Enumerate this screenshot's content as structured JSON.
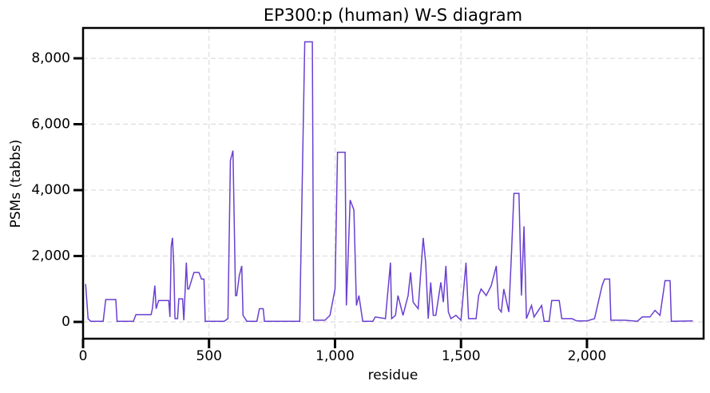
{
  "chart_data": {
    "type": "line",
    "title": "EP300:p (human) W-S diagram",
    "xlabel": "residue",
    "ylabel": "PSMs (tabbs)",
    "color": "#6a3fd0",
    "grid": true,
    "x": [
      10,
      20,
      30,
      80,
      90,
      130,
      135,
      200,
      210,
      270,
      275,
      285,
      290,
      300,
      340,
      345,
      350,
      355,
      360,
      365,
      375,
      380,
      395,
      400,
      410,
      415,
      420,
      440,
      460,
      470,
      480,
      485,
      500,
      560,
      575,
      585,
      595,
      600,
      605,
      610,
      620,
      630,
      635,
      650,
      690,
      700,
      715,
      720,
      860,
      880,
      910,
      915,
      960,
      980,
      1000,
      1010,
      1040,
      1045,
      1050,
      1060,
      1075,
      1085,
      1095,
      1110,
      1150,
      1160,
      1200,
      1220,
      1225,
      1240,
      1250,
      1260,
      1270,
      1290,
      1300,
      1310,
      1330,
      1350,
      1360,
      1370,
      1380,
      1390,
      1400,
      1420,
      1430,
      1440,
      1450,
      1460,
      1480,
      1500,
      1520,
      1530,
      1560,
      1570,
      1580,
      1600,
      1620,
      1640,
      1650,
      1660,
      1670,
      1690,
      1700,
      1710,
      1730,
      1740,
      1750,
      1760,
      1780,
      1790,
      1820,
      1830,
      1850,
      1860,
      1890,
      1900,
      1940,
      1960,
      2000,
      2030,
      2060,
      2070,
      2090,
      2095,
      2150,
      2200,
      2220,
      2250,
      2270,
      2290,
      2310,
      2330,
      2335,
      2420
    ],
    "values": [
      1150,
      100,
      20,
      20,
      680,
      680,
      20,
      20,
      220,
      220,
      400,
      1100,
      400,
      650,
      650,
      150,
      2300,
      2550,
      1700,
      100,
      100,
      700,
      700,
      50,
      1800,
      1000,
      1000,
      1500,
      1500,
      1300,
      1300,
      20,
      20,
      20,
      100,
      4900,
      5200,
      3000,
      800,
      800,
      1400,
      1700,
      200,
      20,
      20,
      400,
      400,
      20,
      20,
      8500,
      8500,
      50,
      50,
      200,
      1000,
      5150,
      5150,
      500,
      1500,
      3700,
      3400,
      500,
      800,
      20,
      20,
      150,
      100,
      1800,
      100,
      200,
      800,
      500,
      200,
      800,
      1500,
      600,
      400,
      2550,
      1800,
      100,
      1200,
      200,
      200,
      1200,
      600,
      1700,
      300,
      100,
      200,
      50,
      1800,
      100,
      100,
      800,
      1000,
      800,
      1100,
      1700,
      400,
      300,
      1000,
      300,
      2000,
      3900,
      3900,
      800,
      2900,
      100,
      500,
      150,
      500,
      20,
      20,
      650,
      650,
      100,
      100,
      30,
      30,
      100,
      1100,
      1300,
      1300,
      50,
      50,
      20,
      150,
      150,
      350,
      200,
      1250,
      1250,
      20,
      30
    ],
    "xlim": [
      0,
      2463
    ],
    "ylim": [
      -509,
      8921
    ],
    "xticks": [
      0,
      500,
      {
        "value": 1000,
        "label": "1,000"
      },
      {
        "value": 1500,
        "label": "1,500"
      },
      {
        "value": 2000,
        "label": "2,000"
      }
    ],
    "yticks": [
      0,
      {
        "value": 2000,
        "label": "2,000"
      },
      {
        "value": 4000,
        "label": "4,000"
      },
      {
        "value": 6000,
        "label": "6,000"
      },
      {
        "value": 8000,
        "label": "8,000"
      }
    ]
  }
}
